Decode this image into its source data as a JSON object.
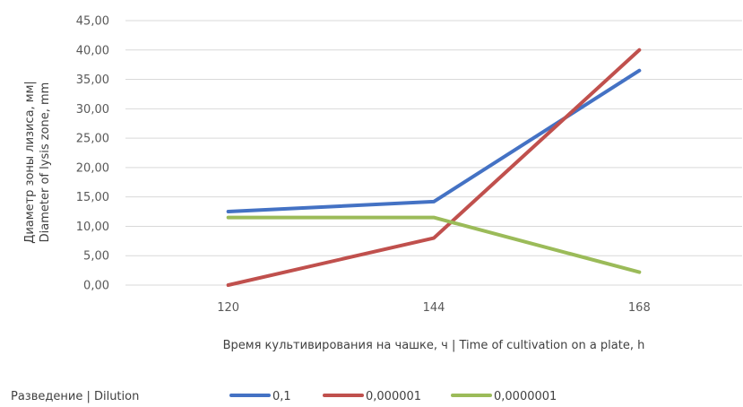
{
  "chart_data": {
    "type": "line",
    "title": "",
    "xlabel": "Время культивирования на чашке, ч | Time of cultivation on a plate, h",
    "ylabel_lines": [
      "Диаметр зоны лизиса, мм|",
      "Diameter of lysis zone, mm"
    ],
    "categories": [
      "120",
      "144",
      "168"
    ],
    "ylim": [
      0,
      45
    ],
    "yticks": [
      "0,00",
      "5,00",
      "10,00",
      "15,00",
      "20,00",
      "25,00",
      "30,00",
      "35,00",
      "40,00",
      "45,00"
    ],
    "grid": true,
    "legend_title": "Разведение | Dilution",
    "legend_position": "bottom",
    "series": [
      {
        "name": "0,1",
        "color": "#4472C4",
        "values": [
          12.5,
          14.2,
          36.5
        ]
      },
      {
        "name": "0,000001",
        "color": "#C0504D",
        "values": [
          0.0,
          8.0,
          40.0
        ]
      },
      {
        "name": "0,0000001",
        "color": "#9BBB59",
        "values": [
          11.5,
          11.5,
          2.2
        ]
      }
    ]
  }
}
